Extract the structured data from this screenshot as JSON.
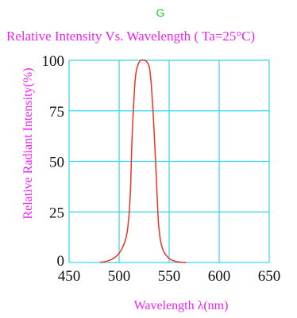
{
  "colors": {
    "series_label": "#22cc22",
    "title": "#ee22ee",
    "axis_label": "#ee22ee",
    "grid": "#33d6ee",
    "curve": "#ee3322",
    "tick": "#111111"
  },
  "chart_data": {
    "type": "line",
    "series_label": "G",
    "title": "Relative Intensity  Vs. Wavelength  ( Ta=25°C)",
    "xlabel": "Wavelength λ(nm)",
    "ylabel": "Relative Radiant Intensity(%)",
    "xlim": [
      450,
      650
    ],
    "ylim": [
      0,
      100
    ],
    "x_ticks": [
      450,
      500,
      550,
      600,
      650
    ],
    "y_ticks": [
      0,
      25,
      50,
      75,
      100
    ],
    "grid": true,
    "series": [
      {
        "x": [
          481,
          490,
          497,
          503,
          508,
          511,
          513,
          516,
          519,
          522,
          525,
          528,
          531,
          534,
          537,
          539,
          541,
          544,
          550,
          557,
          567
        ],
        "y": [
          0,
          1,
          3,
          7,
          15,
          32,
          62,
          90,
          98,
          100,
          100,
          99,
          94,
          74,
          44,
          22,
          12,
          6,
          2,
          0.5,
          0
        ]
      }
    ]
  }
}
